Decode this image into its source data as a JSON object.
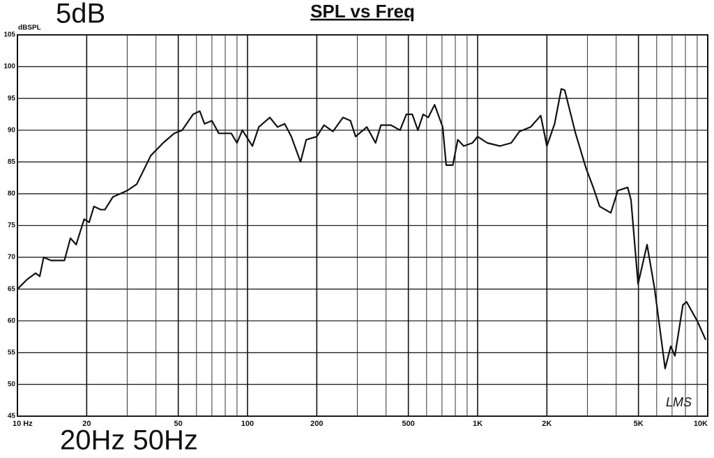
{
  "chart_data": {
    "type": "line",
    "title": "SPL vs Freq",
    "y_label": "dBSPL",
    "annotations": [
      "5dB",
      "20Hz 50Hz",
      "LMS"
    ],
    "x_scale": "log",
    "grid": true,
    "xlim": [
      10,
      10000
    ],
    "ylim": [
      45,
      105
    ],
    "xticks": [
      {
        "value": 10,
        "label": "10 Hz"
      },
      20,
      50,
      100,
      200,
      500,
      {
        "value": 1000,
        "label": "1K"
      },
      {
        "value": 2000,
        "label": "2K"
      },
      {
        "value": 5000,
        "label": "5K"
      },
      {
        "value": 10000,
        "label": "10K"
      }
    ],
    "x_minor_grid": [
      30,
      40,
      60,
      70,
      80,
      90,
      300,
      400,
      600,
      700,
      800,
      900,
      3000,
      4000,
      6000,
      7000,
      8000,
      9000
    ],
    "yticks": [
      45,
      50,
      55,
      60,
      65,
      70,
      75,
      80,
      85,
      90,
      95,
      100,
      105
    ],
    "x": [
      10,
      11,
      12,
      12.5,
      13,
      14,
      16,
      17,
      18,
      19.5,
      20.5,
      21.5,
      23,
      24,
      26,
      28,
      30,
      33,
      38,
      43,
      48,
      52,
      58,
      62,
      65,
      70,
      75,
      85,
      90,
      95,
      105,
      112,
      125,
      135,
      145,
      155,
      170,
      180,
      200,
      215,
      235,
      260,
      280,
      295,
      330,
      360,
      380,
      420,
      460,
      490,
      520,
      550,
      580,
      610,
      650,
      705,
      730,
      780,
      820,
      870,
      950,
      1000,
      1100,
      1250,
      1400,
      1520,
      1700,
      1880,
      2000,
      2160,
      2310,
      2390,
      2660,
      2960,
      3180,
      3390,
      3790,
      4065,
      4490,
      4640,
      4980,
      5450,
      5880,
      6530,
      6910,
      7200,
      7800,
      8090,
      9000,
      9800
    ],
    "series": [
      {
        "name": "SPL",
        "color": "#111111",
        "values": [
          65,
          66.5,
          67.5,
          67,
          70,
          69.5,
          69.5,
          73,
          72,
          76,
          75.5,
          78,
          77.5,
          77.5,
          79.5,
          80,
          80.5,
          81.5,
          86,
          88,
          89.5,
          90,
          92.5,
          93,
          91,
          91.5,
          89.5,
          89.5,
          88,
          90,
          87.5,
          90.5,
          92,
          90.5,
          91,
          89,
          85,
          88.5,
          89,
          90.8,
          89.8,
          92,
          91.5,
          89,
          90.5,
          88,
          90.8,
          90.8,
          90,
          92.5,
          92.5,
          90,
          92.5,
          92,
          94,
          90.5,
          84.5,
          84.5,
          88.5,
          87.5,
          88,
          89,
          88,
          87.5,
          88,
          89.8,
          90.5,
          92.3,
          87.5,
          91,
          96.5,
          96.3,
          89.6,
          84,
          81,
          78,
          77,
          80.5,
          81,
          79,
          65.8,
          72,
          65,
          52.5,
          56,
          54.5,
          62.5,
          63,
          60,
          57
        ]
      }
    ]
  }
}
